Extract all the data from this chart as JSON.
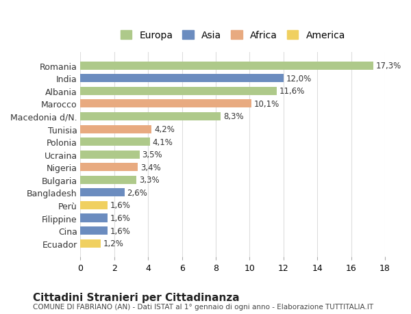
{
  "countries": [
    "Romania",
    "India",
    "Albania",
    "Marocco",
    "Macedonia d/N.",
    "Tunisia",
    "Polonia",
    "Ucraina",
    "Nigeria",
    "Bulgaria",
    "Bangladesh",
    "Perù",
    "Filippine",
    "Cina",
    "Ecuador"
  ],
  "values": [
    17.3,
    12.0,
    11.6,
    10.1,
    8.3,
    4.2,
    4.1,
    3.5,
    3.4,
    3.3,
    2.6,
    1.6,
    1.6,
    1.6,
    1.2
  ],
  "continents": [
    "Europa",
    "Asia",
    "Europa",
    "Africa",
    "Europa",
    "Africa",
    "Europa",
    "Europa",
    "Africa",
    "Europa",
    "Asia",
    "America",
    "Asia",
    "Asia",
    "America"
  ],
  "labels": [
    "17,3%",
    "12,0%",
    "11,6%",
    "10,1%",
    "8,3%",
    "4,2%",
    "4,1%",
    "3,5%",
    "3,4%",
    "3,3%",
    "2,6%",
    "1,6%",
    "1,6%",
    "1,6%",
    "1,2%"
  ],
  "colors": {
    "Europa": "#aec98a",
    "Asia": "#6b8cbf",
    "Africa": "#e8aa80",
    "America": "#f0d060"
  },
  "legend_order": [
    "Europa",
    "Asia",
    "Africa",
    "America"
  ],
  "title": "Cittadini Stranieri per Cittadinanza",
  "subtitle": "COMUNE DI FABRIANO (AN) - Dati ISTAT al 1° gennaio di ogni anno - Elaborazione TUTTITALIA.IT",
  "xlim": [
    0,
    18
  ],
  "xticks": [
    0,
    2,
    4,
    6,
    8,
    10,
    12,
    14,
    16,
    18
  ],
  "background_color": "#ffffff",
  "grid_color": "#dddddd"
}
